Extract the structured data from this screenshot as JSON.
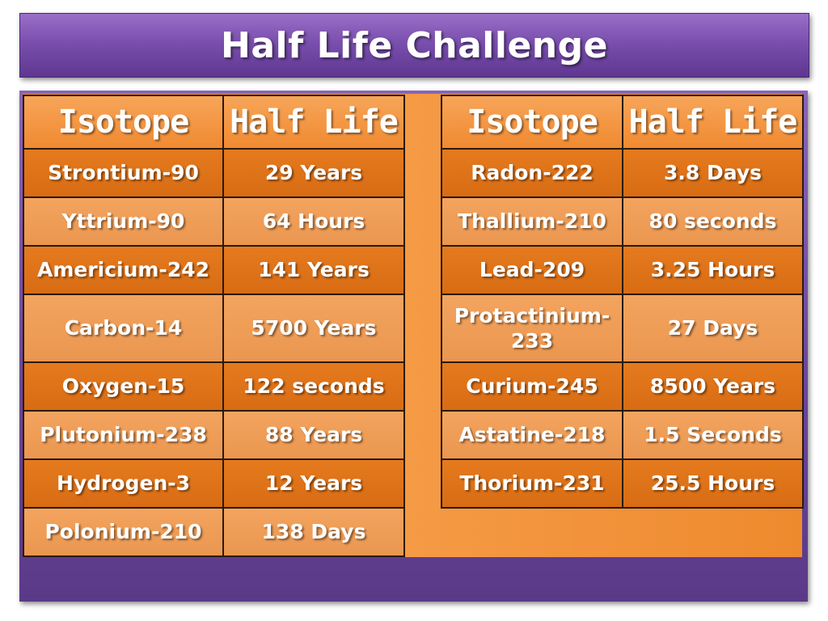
{
  "title": "Half Life Challenge",
  "headers": {
    "isotope": "Isotope",
    "half_life": "Half Life"
  },
  "left_rows": [
    {
      "isotope": "Strontium-90",
      "half_life": "29 Years"
    },
    {
      "isotope": "Yttrium-90",
      "half_life": "64 Hours"
    },
    {
      "isotope": "Americium-242",
      "half_life": "141 Years"
    },
    {
      "isotope": "Carbon-14",
      "half_life": "5700 Years"
    },
    {
      "isotope": "Oxygen-15",
      "half_life": "122 seconds"
    },
    {
      "isotope": "Plutonium-238",
      "half_life": "88 Years"
    },
    {
      "isotope": "Hydrogen-3",
      "half_life": "12 Years"
    },
    {
      "isotope": "Polonium-210",
      "half_life": "138 Days"
    }
  ],
  "right_rows": [
    {
      "isotope": "Radon-222",
      "half_life": "3.8 Days"
    },
    {
      "isotope": "Thallium-210",
      "half_life": "80 seconds"
    },
    {
      "isotope": "Lead-209",
      "half_life": "3.25 Hours"
    },
    {
      "isotope": "Protactinium-233",
      "half_life": "27 Days"
    },
    {
      "isotope": "Curium-245",
      "half_life": "8500 Years"
    },
    {
      "isotope": "Astatine-218",
      "half_life": "1.5 Seconds"
    },
    {
      "isotope": "Thorium-231",
      "half_life": "25.5 Hours"
    }
  ],
  "colors": {
    "title_bar": "#7a4fae",
    "panel": "#6a459a",
    "cell_dark": "#e0741a",
    "cell_light": "#ee9c55",
    "header": "#f39a48"
  }
}
